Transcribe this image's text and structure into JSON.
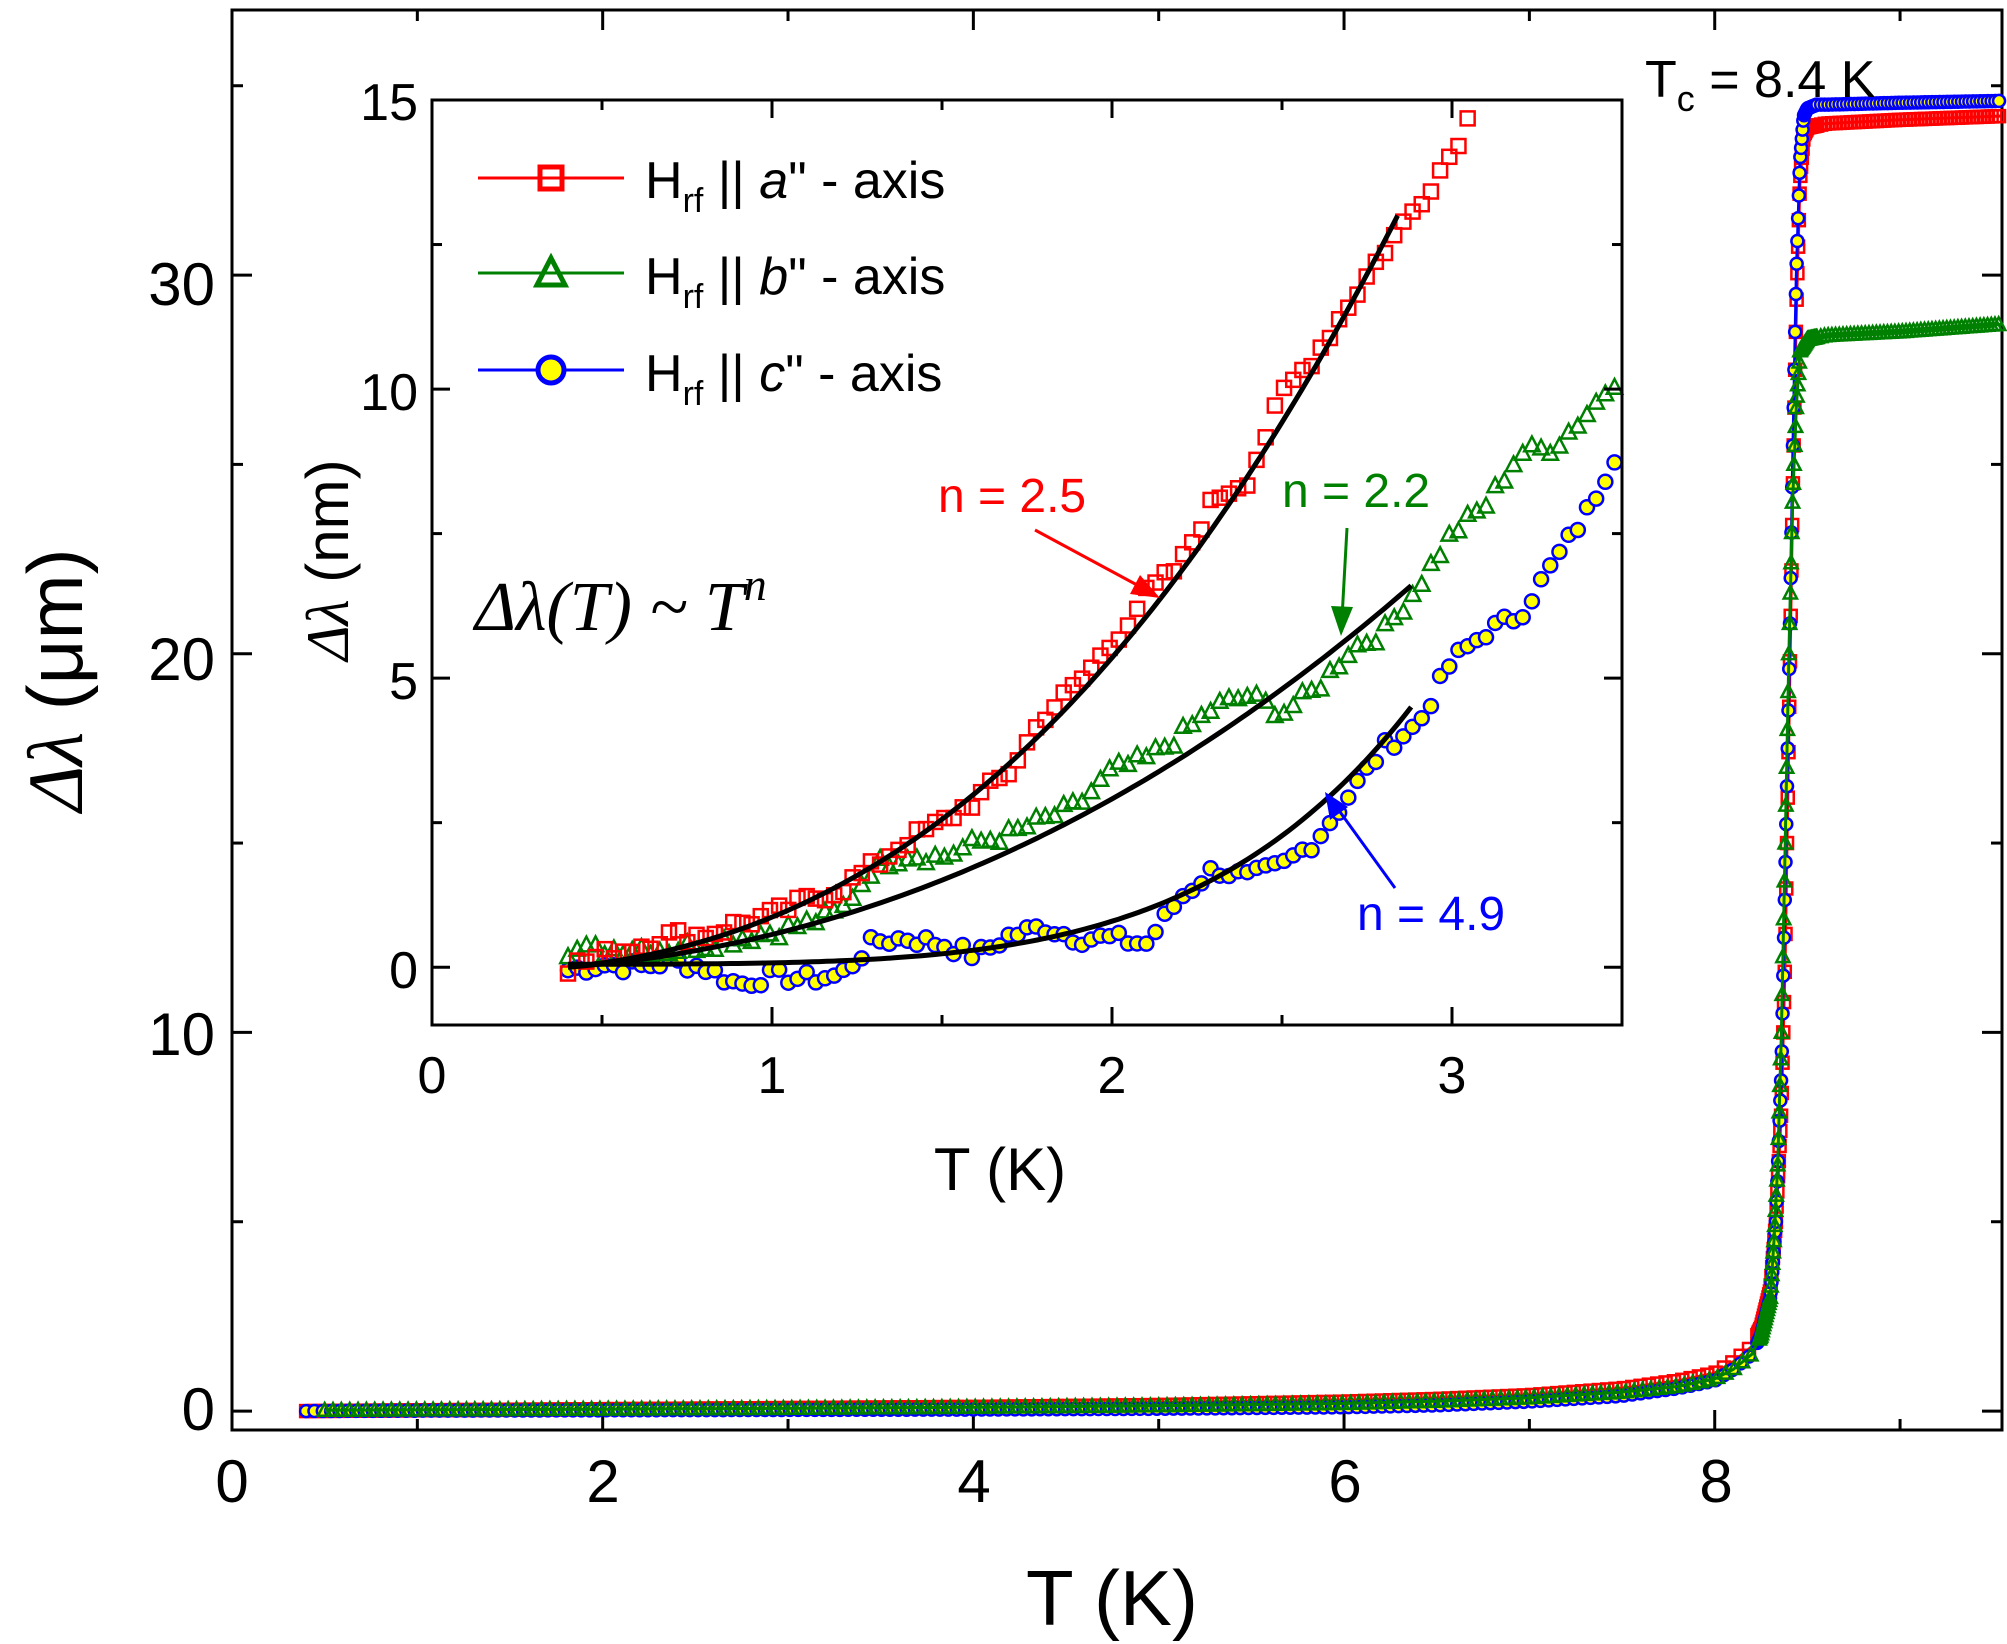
{
  "chart_data": [
    {
      "id": "main",
      "type": "scatter",
      "title": "",
      "xlabel": "T (K)",
      "ylabel_symbol": "Δλ",
      "ylabel_unit": "(μm)",
      "xlim": [
        0,
        9.55
      ],
      "ylim": [
        -0.5,
        37
      ],
      "xticks": [
        0,
        2,
        4,
        6,
        8
      ],
      "xtick_labels": [
        "0",
        "2",
        "4",
        "6",
        "8"
      ],
      "yticks": [
        0,
        10,
        20,
        30
      ],
      "ytick_labels": [
        "0",
        "10",
        "20",
        "30"
      ],
      "annotation": {
        "prefix": "T",
        "subscript": "c",
        "suffix": " = 8.4 K"
      },
      "series": [
        {
          "name": "Hrf || a\" - axis",
          "color": "#ff0000",
          "marker": "square",
          "x": [
            0.4,
            1,
            2,
            3,
            4,
            5,
            6,
            6.5,
            7,
            7.5,
            7.8,
            8.0,
            8.1,
            8.2,
            8.25,
            8.3,
            8.33,
            8.36,
            8.38,
            8.4,
            8.42,
            8.44,
            8.46,
            8.48,
            8.5,
            8.55,
            8.6,
            9.0,
            9.55
          ],
          "y": [
            0,
            0.02,
            0.05,
            0.08,
            0.11,
            0.16,
            0.25,
            0.32,
            0.42,
            0.6,
            0.8,
            1.0,
            1.3,
            1.7,
            2.2,
            3.2,
            5.0,
            8.0,
            12.0,
            18.0,
            24.0,
            29.0,
            32.5,
            33.7,
            33.9,
            33.95,
            34.0,
            34.1,
            34.2
          ]
        },
        {
          "name": "Hrf || b\" - axis",
          "color": "#008000",
          "marker": "triangle",
          "x": [
            0.5,
            1,
            2,
            3,
            4,
            5,
            6,
            6.5,
            7,
            7.5,
            7.8,
            8.0,
            8.1,
            8.2,
            8.25,
            8.3,
            8.32,
            8.34,
            8.36,
            8.38,
            8.4,
            8.42,
            8.44,
            8.46,
            8.5,
            8.6,
            9.0,
            9.55
          ],
          "y": [
            0.02,
            0.03,
            0.05,
            0.07,
            0.1,
            0.14,
            0.2,
            0.26,
            0.35,
            0.5,
            0.65,
            0.85,
            1.1,
            1.5,
            2.0,
            3.0,
            4.5,
            6.5,
            10.0,
            15.0,
            20.0,
            24.0,
            26.5,
            28.0,
            28.3,
            28.4,
            28.5,
            28.7
          ]
        },
        {
          "name": "Hrf || c\" - axis",
          "color": "#0000ff",
          "marker": "circle",
          "fill": "#ffff00",
          "x": [
            0.4,
            1,
            2,
            3,
            4,
            5,
            6,
            6.5,
            7,
            7.5,
            7.8,
            8.0,
            8.1,
            8.2,
            8.25,
            8.3,
            8.33,
            8.36,
            8.38,
            8.4,
            8.42,
            8.44,
            8.46,
            8.48,
            8.5,
            8.55,
            8.6,
            9.0,
            9.55
          ],
          "y": [
            0,
            0.01,
            0.02,
            0.03,
            0.04,
            0.06,
            0.1,
            0.15,
            0.25,
            0.4,
            0.6,
            0.8,
            1.1,
            1.5,
            2.0,
            3.0,
            5.0,
            9.0,
            14.0,
            19.0,
            25.0,
            30.0,
            33.0,
            34.2,
            34.4,
            34.5,
            34.5,
            34.55,
            34.6
          ]
        }
      ]
    },
    {
      "id": "inset",
      "type": "scatter",
      "title": "",
      "xlabel": "T (K)",
      "ylabel_symbol": "Δλ",
      "ylabel_unit": "(nm)",
      "xlim": [
        0,
        3.5
      ],
      "ylim": [
        -1,
        15
      ],
      "xticks": [
        0,
        1,
        2,
        3
      ],
      "xtick_labels": [
        "0",
        "1",
        "2",
        "3"
      ],
      "yticks": [
        0,
        5,
        10,
        15
      ],
      "ytick_labels": [
        "0",
        "5",
        "10",
        "15"
      ],
      "formula": {
        "lhs": "Δλ(T)",
        "rel": " ~ ",
        "base": "T",
        "exponent": "n"
      },
      "legend_position": "top-left",
      "legend": [
        {
          "prefix": "H",
          "subscript": "rf",
          "mid": " || ",
          "axis": "a",
          "suffix": "\" - axis"
        },
        {
          "prefix": "H",
          "subscript": "rf",
          "mid": " || ",
          "axis": "b",
          "suffix": "\" - axis"
        },
        {
          "prefix": "H",
          "subscript": "rf",
          "mid": " || ",
          "axis": "c",
          "suffix": "\" - axis"
        }
      ],
      "series": [
        {
          "name": "Hrf || a\" - axis",
          "color": "#ff0000",
          "marker": "square",
          "x": [
            0.4,
            0.5,
            0.6,
            0.7,
            0.8,
            0.9,
            1.0,
            1.1,
            1.2,
            1.3,
            1.4,
            1.5,
            1.6,
            1.7,
            1.8,
            1.9,
            2.0,
            2.1,
            2.2,
            2.3,
            2.4,
            2.5,
            2.6,
            2.7,
            2.8,
            2.9,
            3.0,
            3.05
          ],
          "y": [
            0.0,
            0.2,
            0.35,
            0.55,
            0.55,
            0.75,
            0.9,
            1.15,
            1.35,
            1.75,
            2.2,
            2.5,
            2.9,
            3.4,
            4.35,
            4.9,
            5.6,
            6.45,
            6.95,
            8.1,
            8.45,
            9.9,
            10.6,
            11.5,
            12.4,
            13.2,
            14.1,
            14.7
          ],
          "fit": {
            "n": 2.5,
            "xmin": 0.4,
            "xmax": 2.84,
            "y0": 0.0,
            "ymax": 13.0
          }
        },
        {
          "name": "Hrf || b\" - axis",
          "color": "#008000",
          "marker": "triangle",
          "x": [
            0.4,
            0.5,
            0.6,
            0.7,
            0.8,
            0.9,
            1.0,
            1.1,
            1.2,
            1.3,
            1.4,
            1.5,
            1.6,
            1.7,
            1.8,
            1.9,
            2.0,
            2.1,
            2.2,
            2.3,
            2.4,
            2.5,
            2.6,
            2.7,
            2.8,
            2.9,
            3.0,
            3.1,
            3.2,
            3.3,
            3.4,
            3.5
          ],
          "y": [
            0.3,
            0.3,
            0.35,
            0.3,
            0.4,
            0.5,
            0.6,
            0.75,
            0.95,
            1.75,
            1.95,
            1.9,
            2.15,
            2.3,
            2.55,
            2.8,
            3.4,
            3.6,
            4.0,
            4.5,
            4.7,
            4.4,
            4.8,
            5.5,
            5.8,
            6.6,
            7.5,
            8.0,
            8.9,
            9.0,
            9.6,
            10.3
          ],
          "fit": {
            "n": 2.2,
            "xmin": 0.4,
            "xmax": 2.88,
            "y0": 0.0,
            "ymax": 6.6
          }
        },
        {
          "name": "Hrf || c\" - axis",
          "color": "#0000ff",
          "marker": "circle",
          "fill": "#ffff00",
          "x": [
            0.4,
            0.5,
            0.6,
            0.7,
            0.8,
            0.9,
            1.0,
            1.1,
            1.2,
            1.3,
            1.4,
            1.5,
            1.6,
            1.7,
            1.8,
            1.9,
            2.0,
            2.1,
            2.2,
            2.3,
            2.4,
            2.5,
            2.6,
            2.7,
            2.8,
            2.9,
            3.0,
            3.1,
            3.2,
            3.3,
            3.4,
            3.5
          ],
          "y": [
            -0.05,
            0.05,
            0.0,
            0.1,
            0.0,
            -0.3,
            -0.15,
            -0.2,
            -0.15,
            0.45,
            0.5,
            0.4,
            0.2,
            0.55,
            0.7,
            0.5,
            0.5,
            0.4,
            1.2,
            1.7,
            1.55,
            1.75,
            2.2,
            3.0,
            3.8,
            4.2,
            5.3,
            5.8,
            6.1,
            7.0,
            7.9,
            9.1
          ],
          "fit": {
            "n": 4.9,
            "xmin": 0.4,
            "xmax": 2.88,
            "y0": 0.05,
            "ymax": 4.5
          }
        }
      ],
      "annotations": [
        {
          "text": "n = 2.5",
          "color": "#ff0000"
        },
        {
          "text": "n = 2.2",
          "color": "#008000"
        },
        {
          "text": "n = 4.9",
          "color": "#0000ff"
        }
      ]
    }
  ]
}
